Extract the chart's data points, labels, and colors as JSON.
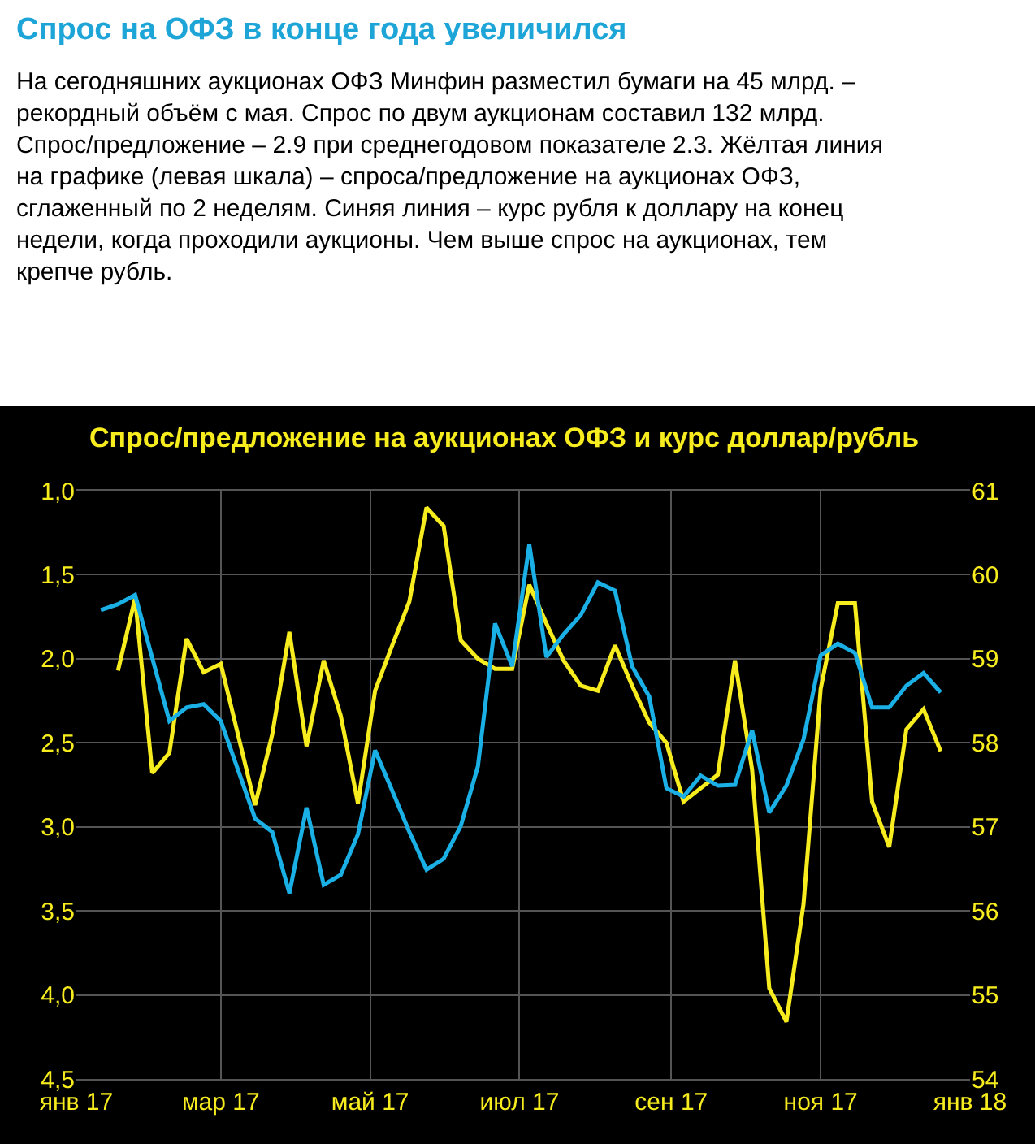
{
  "chart_data": {
    "type": "line",
    "title": "Спрос на ОФЗ в конце года увеличился",
    "subtitle": "На сегодняшних аукционах ОФЗ Минфин разместил бумаги на 45 млрд. – рекордный объём с мая. Спрос по двум аукционам составил 132 млрд. Спрос/предложение – 2.9 при среднегодовом показателе 2.3. Жёлтая линия на графике (левая шкала) – спроса/предложение на аукционах ОФЗ, сглаженный по 2 неделям. Синяя линия – курс рубля к доллару на конец недели, когда проходили аукционы. Чем выше спрос на аукционах, тем крепче рубль.",
    "annotations": [
      "Спрос/предложение на аукционах ОФЗ и курс доллар/рубль"
    ],
    "series": [
      {
        "color": "#f7ec1e",
        "x": [
          "2017-01-18",
          "2017-01-25",
          "2017-02-01",
          "2017-02-08",
          "2017-02-15",
          "2017-02-22",
          "2017-03-01",
          "2017-03-15",
          "2017-03-22",
          "2017-03-29",
          "2017-04-05",
          "2017-04-12",
          "2017-04-19",
          "2017-04-26",
          "2017-05-03",
          "2017-05-10",
          "2017-05-17",
          "2017-05-24",
          "2017-05-31",
          "2017-06-07",
          "2017-06-14",
          "2017-06-21",
          "2017-06-28",
          "2017-07-05",
          "2017-07-12",
          "2017-07-19",
          "2017-07-26",
          "2017-08-02",
          "2017-08-09",
          "2017-08-16",
          "2017-08-23",
          "2017-08-30",
          "2017-09-06",
          "2017-09-13",
          "2017-09-20",
          "2017-09-27",
          "2017-10-04",
          "2017-10-11",
          "2017-10-18",
          "2017-10-25",
          "2017-11-01",
          "2017-11-08",
          "2017-11-15",
          "2017-11-22",
          "2017-11-29",
          "2017-12-06",
          "2017-12-13",
          "2017-12-20"
        ],
        "values": [
          2.07,
          1.64,
          2.68,
          2.56,
          1.88,
          2.08,
          2.03,
          2.87,
          2.45,
          1.84,
          2.52,
          2.01,
          2.34,
          2.86,
          2.19,
          1.92,
          1.66,
          1.1,
          1.21,
          1.89,
          2.0,
          2.06,
          2.06,
          1.56,
          1.79,
          2.01,
          2.16,
          2.19,
          1.92,
          2.16,
          2.38,
          2.5,
          2.85,
          2.77,
          2.69,
          2.01,
          2.66,
          3.96,
          4.16,
          3.46,
          2.18,
          1.67,
          1.67,
          2.85,
          3.12,
          2.42,
          2.3,
          2.55
        ]
      },
      {
        "color": "#1ab0e6",
        "axis": "y2",
        "x": [
          "2017-01-11",
          "2017-01-18",
          "2017-01-25",
          "2017-02-08",
          "2017-02-15",
          "2017-02-22",
          "2017-03-01",
          "2017-03-08",
          "2017-03-15",
          "2017-03-22",
          "2017-03-29",
          "2017-04-05",
          "2017-04-12",
          "2017-04-19",
          "2017-04-26",
          "2017-05-03",
          "2017-05-10",
          "2017-05-17",
          "2017-05-24",
          "2017-05-31",
          "2017-06-07",
          "2017-06-14",
          "2017-06-21",
          "2017-06-28",
          "2017-07-05",
          "2017-07-12",
          "2017-07-19",
          "2017-07-26",
          "2017-08-02",
          "2017-08-09",
          "2017-08-16",
          "2017-08-23",
          "2017-08-30",
          "2017-09-06",
          "2017-09-13",
          "2017-09-20",
          "2017-09-27",
          "2017-10-04",
          "2017-10-11",
          "2017-10-18",
          "2017-10-25",
          "2017-11-01",
          "2017-11-08",
          "2017-11-15",
          "2017-11-22",
          "2017-11-29",
          "2017-12-06",
          "2017-12-13",
          "2017-12-20"
        ],
        "values": [
          59.58,
          59.65,
          59.76,
          58.26,
          58.42,
          58.46,
          58.26,
          57.68,
          57.1,
          56.94,
          56.21,
          57.23,
          56.31,
          56.43,
          56.91,
          57.91,
          57.43,
          56.94,
          56.49,
          56.62,
          57.01,
          57.72,
          59.42,
          58.91,
          60.36,
          59.02,
          59.29,
          59.52,
          59.91,
          59.81,
          58.91,
          58.55,
          57.46,
          57.36,
          57.61,
          57.49,
          57.5,
          58.15,
          57.17,
          57.49,
          58.04,
          59.04,
          59.18,
          59.07,
          58.42,
          58.42,
          58.68,
          58.83,
          58.6
        ]
      }
    ],
    "xlim": [
      "2017-01-01",
      "2018-01-01"
    ],
    "xticks": [
      {
        "value": "2017-01-01",
        "label": "янв 17"
      },
      {
        "value": "2017-03-01",
        "label": "мар 17"
      },
      {
        "value": "2017-05-01",
        "label": "май 17"
      },
      {
        "value": "2017-07-01",
        "label": "июл 17"
      },
      {
        "value": "2017-09-01",
        "label": "сен 17"
      },
      {
        "value": "2017-11-01",
        "label": "ноя 17"
      },
      {
        "value": "2018-01-01",
        "label": "янв 18"
      }
    ],
    "ylim": [
      4.5,
      1.0
    ],
    "yticks": [
      {
        "value": 1.0,
        "label": "1,0"
      },
      {
        "value": 1.5,
        "label": "1,5"
      },
      {
        "value": 2.0,
        "label": "2,0"
      },
      {
        "value": 2.5,
        "label": "2,5"
      },
      {
        "value": 3.0,
        "label": "3,0"
      },
      {
        "value": 3.5,
        "label": "3,5"
      },
      {
        "value": 4.0,
        "label": "4,0"
      },
      {
        "value": 4.5,
        "label": "4,5"
      }
    ],
    "y2lim": [
      54,
      61
    ],
    "y2ticks": [
      54,
      55,
      56,
      57,
      58,
      59,
      60,
      61
    ],
    "grid": true,
    "marker": "none",
    "line_style": "solid"
  }
}
